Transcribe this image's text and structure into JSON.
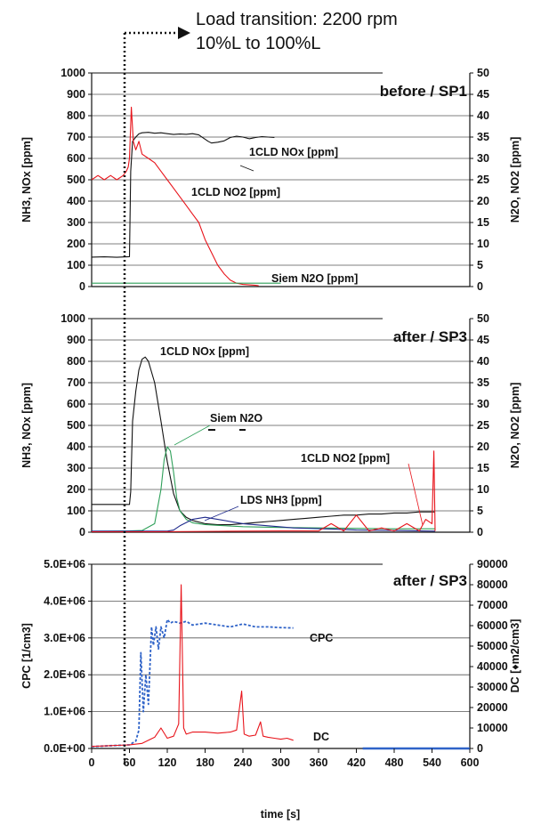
{
  "header": {
    "line1": "Load transition: 2200 rpm",
    "line2": "10%L to 100%L"
  },
  "x_axis": {
    "label": "time [s]",
    "ticks": [
      0,
      60,
      120,
      180,
      240,
      300,
      360,
      420,
      480,
      540,
      600
    ],
    "range": [
      0,
      600
    ]
  },
  "colors": {
    "black": "#111111",
    "red": "#e8141b",
    "green": "#2fa05a",
    "navy": "#1f2a8c",
    "blue": "#2f63c8",
    "grid": "#555555"
  },
  "chart_data": [
    {
      "type": "line",
      "title": "before / SP1",
      "ylabel": "NH3, NOx [ppm]",
      "ylabel_right": "N2O, NO2 [ppm]",
      "ylim": [
        0,
        1000
      ],
      "ylim_right": [
        0,
        50
      ],
      "y_ticks": [
        "0",
        "100",
        "200",
        "300",
        "400",
        "500",
        "600",
        "700",
        "800",
        "900",
        "1000"
      ],
      "y_ticks_right": [
        "0",
        "5",
        "10",
        "15",
        "20",
        "25",
        "30",
        "35",
        "40",
        "45",
        "50"
      ],
      "annotations": [
        "1CLD NOx [ppm]",
        "1CLD NO2 [ppm]",
        "Siem N2O [ppm]"
      ],
      "series": [
        {
          "name": "1CLD NOx [ppm]",
          "axis": "left",
          "color": "black",
          "x": [
            0,
            20,
            40,
            60,
            62,
            65,
            70,
            75,
            80,
            90,
            100,
            110,
            120,
            130,
            140,
            150,
            160,
            170,
            180,
            185,
            190,
            200,
            210,
            220,
            230,
            240,
            250,
            260,
            270,
            280,
            290
          ],
          "y": [
            138,
            139,
            137,
            140,
            540,
            680,
            700,
            715,
            720,
            722,
            718,
            720,
            716,
            712,
            714,
            713,
            716,
            710,
            690,
            680,
            672,
            676,
            682,
            698,
            704,
            700,
            692,
            698,
            702,
            700,
            698
          ]
        },
        {
          "name": "1CLD NO2 [ppm]",
          "axis": "right",
          "color": "red",
          "x": [
            0,
            10,
            20,
            30,
            40,
            50,
            55,
            58,
            60,
            63,
            66,
            70,
            75,
            80,
            90,
            100,
            110,
            120,
            130,
            140,
            150,
            160,
            170,
            180,
            190,
            200,
            210,
            220,
            230,
            240,
            250,
            260,
            265
          ],
          "y": [
            25,
            26,
            25,
            26,
            25,
            26,
            27,
            28,
            30,
            42,
            34,
            32,
            34,
            31,
            30,
            29,
            27,
            25,
            23,
            21,
            19,
            17,
            15,
            11,
            8,
            5,
            3,
            1.5,
            0.8,
            0.5,
            0.4,
            0.3,
            0.2
          ]
        },
        {
          "name": "Siem N2O [ppm]",
          "axis": "right",
          "color": "green",
          "x": [
            0,
            60,
            100,
            200,
            300
          ],
          "y": [
            0.8,
            0.8,
            0.8,
            0.8,
            0.8
          ]
        }
      ]
    },
    {
      "type": "line",
      "title": "after / SP3",
      "ylabel": "NH3, NOx [ppm]",
      "ylabel_right": "N2O, NO2 [ppm]",
      "ylim": [
        0,
        1000
      ],
      "ylim_right": [
        0,
        50
      ],
      "y_ticks": [
        "0",
        "100",
        "200",
        "300",
        "400",
        "500",
        "600",
        "700",
        "800",
        "900",
        "1000"
      ],
      "y_ticks_right": [
        "0",
        "5",
        "10",
        "15",
        "20",
        "25",
        "30",
        "35",
        "40",
        "45",
        "50"
      ],
      "annotations": [
        "1CLD NOx [ppm]",
        "Siem N2O",
        "1CLD NO2 [ppm]",
        "LDS NH3 [ppm]"
      ],
      "series": [
        {
          "name": "1CLD NOx [ppm]",
          "axis": "left",
          "color": "black",
          "x": [
            0,
            30,
            60,
            62,
            65,
            70,
            75,
            80,
            85,
            90,
            100,
            110,
            120,
            130,
            140,
            150,
            160,
            180,
            200,
            220,
            240,
            260,
            280,
            300,
            320,
            340,
            360,
            380,
            400,
            420,
            440,
            460,
            480,
            500,
            520,
            540,
            545
          ],
          "y": [
            130,
            130,
            130,
            190,
            520,
            660,
            760,
            810,
            820,
            800,
            700,
            520,
            330,
            180,
            100,
            70,
            55,
            40,
            35,
            35,
            40,
            45,
            50,
            55,
            60,
            65,
            70,
            75,
            80,
            80,
            85,
            85,
            90,
            90,
            95,
            95,
            95
          ]
        },
        {
          "name": "Siem N2O",
          "axis": "right",
          "color": "green",
          "x": [
            0,
            60,
            80,
            100,
            110,
            115,
            120,
            125,
            130,
            135,
            140,
            150,
            160,
            180,
            200,
            240,
            300,
            360,
            420,
            480,
            545
          ],
          "y": [
            0.2,
            0.3,
            0.4,
            2,
            10,
            17,
            20,
            19,
            14,
            8,
            5,
            3,
            2.2,
            1.8,
            1.6,
            1.3,
            1.1,
            1,
            0.9,
            0.8,
            0.8
          ]
        },
        {
          "name": "LDS NH3 [ppm]",
          "axis": "left",
          "color": "navy",
          "x": [
            0,
            120,
            130,
            140,
            160,
            180,
            200,
            240,
            280,
            320,
            380,
            420,
            480,
            545
          ],
          "y": [
            5,
            5,
            10,
            30,
            60,
            70,
            60,
            40,
            30,
            20,
            15,
            10,
            8,
            5
          ]
        },
        {
          "name": "1CLD NO2 [ppm]",
          "axis": "right",
          "color": "red",
          "x": [
            0,
            100,
            200,
            300,
            360,
            380,
            400,
            420,
            440,
            460,
            480,
            500,
            520,
            530,
            540,
            543,
            545
          ],
          "y": [
            0.1,
            0.1,
            0.2,
            0.3,
            0.3,
            2,
            0.3,
            4,
            0.3,
            1,
            0.3,
            2,
            0.3,
            3,
            2,
            19,
            0.3
          ]
        }
      ]
    },
    {
      "type": "line",
      "title": "after / SP3",
      "ylabel": "CPC [1/cm3]",
      "ylabel_right": "DC [♦m2/cm3]",
      "ylim": [
        0,
        5000000
      ],
      "ylim_right": [
        0,
        90000
      ],
      "y_ticks": [
        "0.0E+00",
        "1.0E+06",
        "2.0E+06",
        "3.0E+06",
        "4.0E+06",
        "5.0E+06"
      ],
      "y_ticks_right": [
        "0",
        "10000",
        "20000",
        "30000",
        "40000",
        "50000",
        "60000",
        "70000",
        "80000",
        "90000"
      ],
      "annotations": [
        "CPC",
        "DC"
      ],
      "series": [
        {
          "name": "CPC",
          "axis": "left",
          "color": "blue",
          "dashed": true,
          "x": [
            0,
            60,
            70,
            75,
            78,
            82,
            86,
            90,
            95,
            98,
            102,
            106,
            110,
            115,
            120,
            125,
            130,
            140,
            150,
            160,
            180,
            200,
            220,
            240,
            260,
            280,
            300,
            320
          ],
          "y": [
            50000,
            100000,
            200000,
            500000,
            2600000,
            1000000,
            2000000,
            1200000,
            3300000,
            2800000,
            3300000,
            2700000,
            3300000,
            3000000,
            3500000,
            3400000,
            3450000,
            3400000,
            3450000,
            3350000,
            3400000,
            3350000,
            3300000,
            3380000,
            3300000,
            3300000,
            3280000,
            3270000
          ]
        },
        {
          "name": "CPC (tail)",
          "axis": "left",
          "color": "blue",
          "dashed": false,
          "x": [
            430,
            600
          ],
          "y": [
            0,
            0
          ]
        },
        {
          "name": "DC",
          "axis": "right",
          "color": "red",
          "x": [
            0,
            40,
            60,
            80,
            90,
            100,
            110,
            120,
            130,
            138,
            142,
            146,
            150,
            160,
            180,
            200,
            220,
            230,
            238,
            242,
            250,
            260,
            268,
            272,
            280,
            290,
            300,
            310,
            320
          ],
          "y": [
            1000,
            1500,
            1800,
            2500,
            4000,
            5500,
            10000,
            5000,
            6000,
            12000,
            80000,
            10000,
            7000,
            8000,
            8000,
            7500,
            8000,
            9000,
            28000,
            7000,
            6000,
            6500,
            13000,
            6000,
            5500,
            5000,
            4500,
            5000,
            4000
          ]
        }
      ]
    }
  ]
}
